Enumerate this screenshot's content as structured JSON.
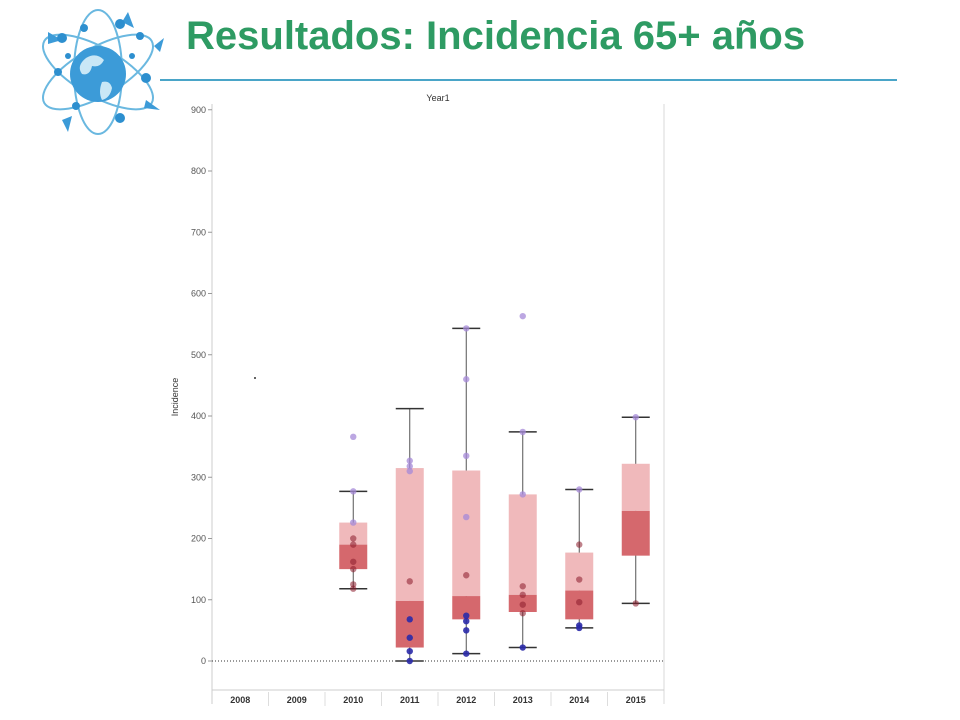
{
  "slide": {
    "title": "Resultados: Incidencia 65+ años"
  },
  "colors": {
    "title": "#2e9b63",
    "rule": "#4aa5c8",
    "box_upper": "#f0b9bb",
    "box_lower": "#d5686d",
    "whisker": "#555555",
    "point_low": "#2a2aa8",
    "point_mid": "#8b1a2a",
    "point_high": "#a68ad8"
  },
  "logo": {
    "icon": "globe-atom-icon"
  },
  "chart_data": {
    "type": "boxplot",
    "title": "Year1",
    "xlabel": "",
    "ylabel": "Incidence",
    "ylim": [
      -50,
      910
    ],
    "yticks": [
      0,
      100,
      200,
      300,
      400,
      500,
      600,
      700,
      800,
      900
    ],
    "yticklabels": [
      "0",
      "100",
      "200",
      "300",
      "400",
      "500",
      "600",
      "700",
      "800",
      "900"
    ],
    "grid": false,
    "reference_line": 0,
    "categories": [
      "2008",
      "2009",
      "2010",
      "2011",
      "2012",
      "2013",
      "2014",
      "2015"
    ],
    "boxes": [
      null,
      null,
      {
        "min": 118,
        "q1": 150,
        "median": 190,
        "q3": 226,
        "max": 277
      },
      {
        "min": 0,
        "q1": 22,
        "median": 98,
        "q3": 315,
        "max": 412
      },
      {
        "min": 12,
        "q1": 68,
        "median": 106,
        "q3": 311,
        "max": 543
      },
      {
        "min": 22,
        "q1": 80,
        "median": 108,
        "q3": 272,
        "max": 374
      },
      {
        "min": 54,
        "q1": 68,
        "median": 115,
        "q3": 177,
        "max": 280
      },
      {
        "min": 94,
        "q1": 172,
        "median": 245,
        "q3": 322,
        "max": 398
      }
    ],
    "points": [
      [],
      [],
      [
        118,
        125,
        150,
        162,
        190,
        200,
        226,
        277,
        366
      ],
      [
        0,
        16,
        38,
        68,
        130,
        310,
        318,
        327
      ],
      [
        12,
        50,
        65,
        74,
        140,
        235,
        335,
        460,
        543
      ],
      [
        22,
        78,
        92,
        108,
        122,
        272,
        374,
        563
      ],
      [
        54,
        58,
        96,
        133,
        190,
        280
      ],
      [
        94,
        398
      ]
    ]
  }
}
